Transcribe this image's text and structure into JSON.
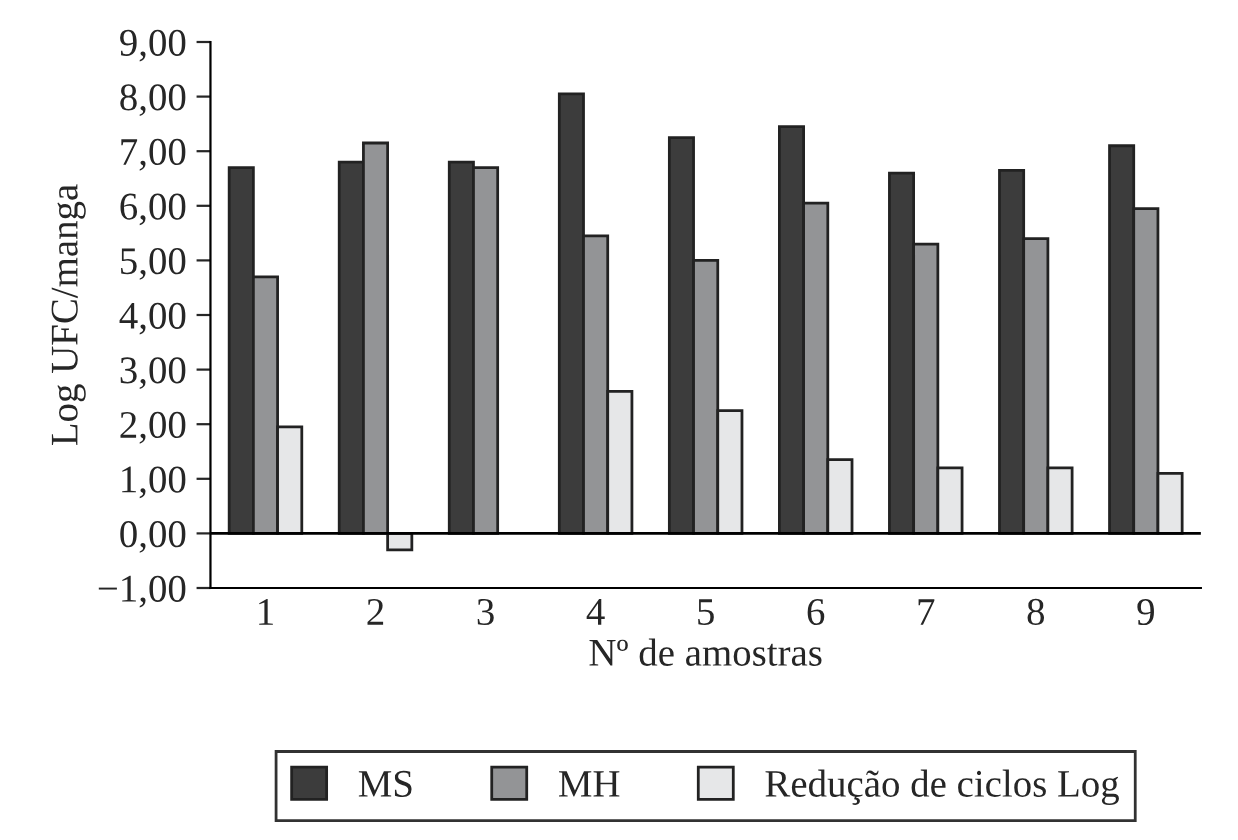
{
  "chart_data": {
    "type": "bar",
    "xlabel": "Nº de amostras",
    "ylabel": "Log UFC/manga",
    "categories": [
      "1",
      "2",
      "3",
      "4",
      "5",
      "6",
      "7",
      "8",
      "9"
    ],
    "series": [
      {
        "name": "MS",
        "color": "#3c3c3c",
        "values": [
          6.7,
          6.8,
          6.8,
          8.05,
          7.25,
          7.45,
          6.6,
          6.65,
          7.1
        ]
      },
      {
        "name": "MH",
        "color": "#939496",
        "values": [
          4.7,
          7.15,
          6.7,
          5.45,
          5.0,
          6.05,
          5.3,
          5.4,
          5.95
        ]
      },
      {
        "name": "Redução de ciclos Log",
        "color": "#e6e7e8",
        "values": [
          1.95,
          -0.3,
          null,
          2.6,
          2.25,
          1.35,
          1.2,
          1.2,
          1.1
        ]
      }
    ],
    "ylim": [
      -1,
      9
    ],
    "yticks": [
      {
        "value": -1,
        "label": "−1,00"
      },
      {
        "value": 0,
        "label": "0,00"
      },
      {
        "value": 1,
        "label": "1,00"
      },
      {
        "value": 2,
        "label": "2,00"
      },
      {
        "value": 3,
        "label": "3,00"
      },
      {
        "value": 4,
        "label": "4,00"
      },
      {
        "value": 5,
        "label": "5,00"
      },
      {
        "value": 6,
        "label": "6,00"
      },
      {
        "value": 7,
        "label": "7,00"
      },
      {
        "value": 8,
        "label": "8,00"
      },
      {
        "value": 9,
        "label": "9,00"
      }
    ],
    "ref_lines": [
      {
        "axis": "y",
        "value": 0,
        "color": "#000000"
      }
    ],
    "grid": false,
    "legend": "bottom"
  }
}
